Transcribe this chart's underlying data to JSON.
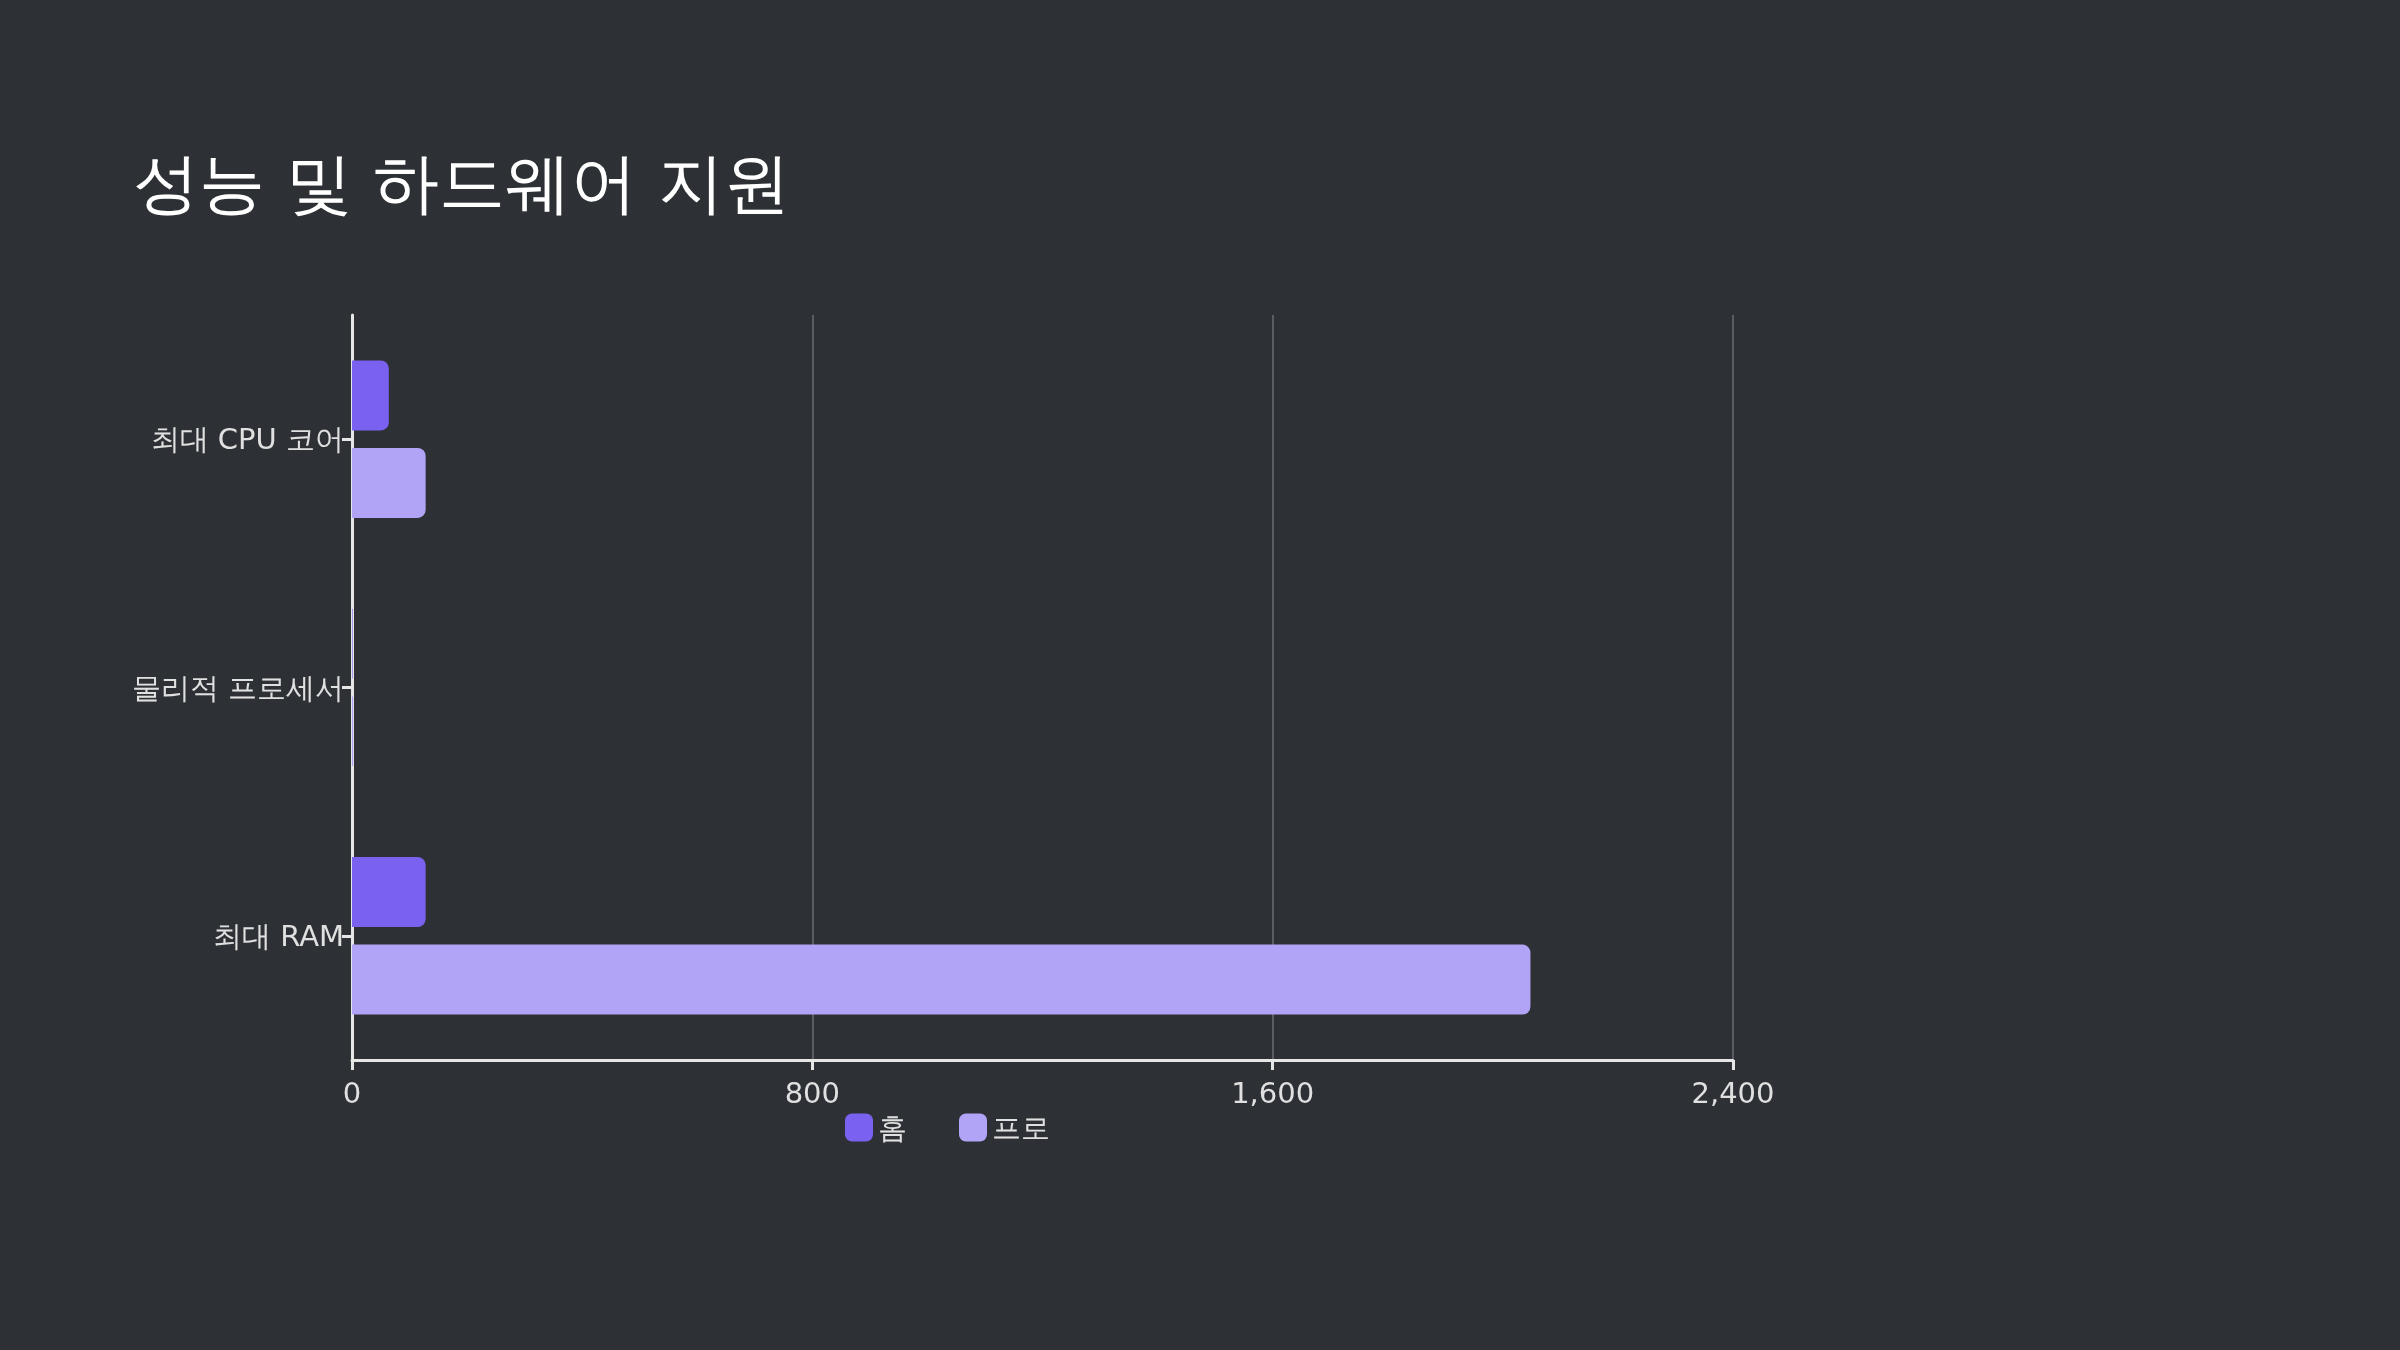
{
  "chart_data": {
    "type": "bar",
    "orientation": "horizontal",
    "title": "성능 및 하드웨어 지원",
    "categories": [
      "최대 CPU 코어",
      "물리적 프로세서",
      "최대 RAM"
    ],
    "series": [
      {
        "name": "홈",
        "color": "#7b61f0",
        "values": [
          64,
          1,
          128
        ]
      },
      {
        "name": "프로",
        "color": "#b1a3f6",
        "values": [
          128,
          2,
          2048
        ]
      }
    ],
    "xlim": [
      0,
      2400
    ],
    "xticks": [
      0,
      800,
      {
        "value": 1600,
        "label": "1,600"
      },
      {
        "value": 2400,
        "label": "2,400"
      }
    ],
    "grid": "x",
    "legend": "bottom"
  }
}
